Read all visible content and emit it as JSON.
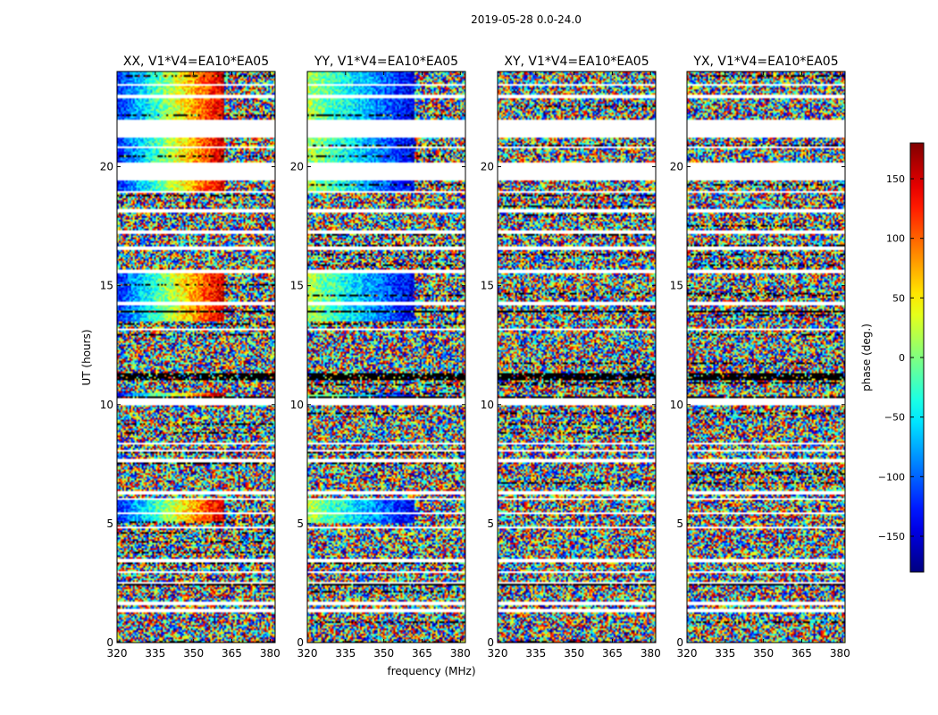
{
  "suptitle": "2019-05-28 0.0-24.0",
  "chart_data": {
    "type": "heatmap",
    "xlabel": "frequency (MHz)",
    "ylabel": "UT (hours)",
    "xlim": [
      320,
      382
    ],
    "ylim": [
      0,
      24
    ],
    "xticks": [
      320,
      335,
      350,
      365,
      380
    ],
    "yticks": [
      0,
      5,
      10,
      15,
      20
    ],
    "colorbar": {
      "label": "phase (deg.)",
      "range": [
        -180,
        180
      ],
      "ticks": [
        -150,
        -100,
        -50,
        0,
        50,
        100,
        150
      ],
      "tick_labels": [
        "−150",
        "−100",
        "−50",
        "0",
        "50",
        "100",
        "150"
      ],
      "colormap": "jet"
    },
    "panels": [
      {
        "title": "XX, V1*V4=EA10*EA05",
        "polarization": "XX",
        "coherent_phase": true
      },
      {
        "title": "YY, V1*V4=EA10*EA05",
        "polarization": "YY",
        "coherent_phase": true
      },
      {
        "title": "XY, V1*V4=EA10*EA05",
        "polarization": "XY",
        "coherent_phase": false
      },
      {
        "title": "YX, V1*V4=EA10*EA05",
        "polarization": "YX",
        "coherent_phase": false
      }
    ],
    "flagged_ut_ranges": [
      [
        1.25,
        1.45
      ],
      [
        1.6,
        1.7
      ],
      [
        2.45,
        2.55
      ],
      [
        2.9,
        3.0
      ],
      [
        3.4,
        3.5
      ],
      [
        4.8,
        4.85
      ],
      [
        5.4,
        5.45
      ],
      [
        6.0,
        6.05
      ],
      [
        6.2,
        6.35
      ],
      [
        7.6,
        7.7
      ],
      [
        8.0,
        8.1
      ],
      [
        8.3,
        8.4
      ],
      [
        10.0,
        10.25
      ],
      [
        13.1,
        13.2
      ],
      [
        14.2,
        14.3
      ],
      [
        15.5,
        15.7
      ],
      [
        16.5,
        16.65
      ],
      [
        17.2,
        17.3
      ],
      [
        18.1,
        18.2
      ],
      [
        18.9,
        19.0
      ],
      [
        19.45,
        20.2
      ],
      [
        20.8,
        20.85
      ],
      [
        21.25,
        22.0
      ],
      [
        23.4,
        23.5
      ],
      [
        22.9,
        23.0
      ]
    ],
    "black_ut_ranges": [
      [
        11.0,
        11.35
      ],
      [
        2.4,
        2.45
      ],
      [
        4.1,
        4.15
      ],
      [
        13.9,
        13.95
      ],
      [
        10.3,
        10.33
      ],
      [
        14.6,
        14.63
      ]
    ]
  }
}
